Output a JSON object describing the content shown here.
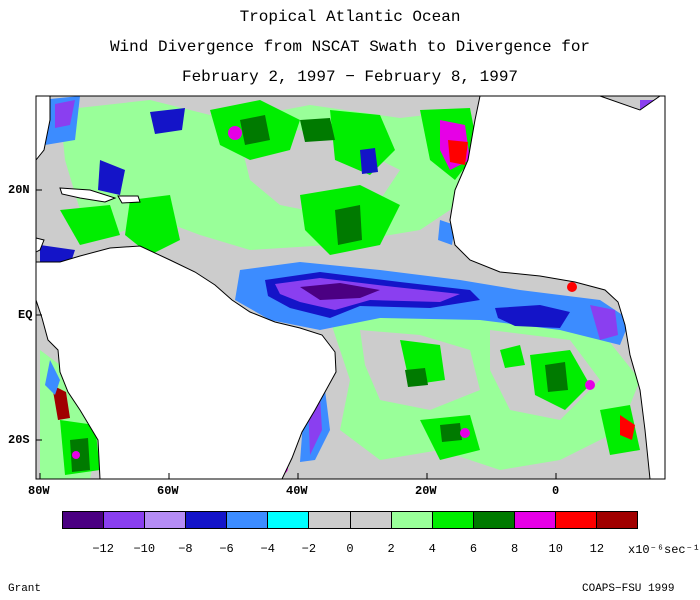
{
  "header": {
    "line1": "Tropical Atlantic Ocean",
    "line2": "Wind Divergence from NSCAT Swath to Divergence for",
    "line3": "February 2, 1997 − February 8, 1997"
  },
  "axes": {
    "lat_labels": [
      "20N",
      "EQ",
      "20S"
    ],
    "lon_labels": [
      "80W",
      "60W",
      "40W",
      "20W",
      "0"
    ]
  },
  "legend": {
    "colors": [
      "#4b0082",
      "#8a3ff0",
      "#b58cf5",
      "#1414c8",
      "#3c8cff",
      "#00ffff",
      "#cccccc",
      "#cccccc",
      "#99ff99",
      "#00ee00",
      "#007a00",
      "#e600e6",
      "#ff0000",
      "#a00000"
    ],
    "tick_labels": [
      "−12",
      "−10",
      "−8",
      "−6",
      "−4",
      "−2",
      "0",
      "2",
      "4",
      "6",
      "8",
      "10",
      "12"
    ],
    "units": "x10⁻⁶sec⁻¹"
  },
  "footer": {
    "left": "Grant",
    "right": "COAPS−FSU 1999"
  }
}
